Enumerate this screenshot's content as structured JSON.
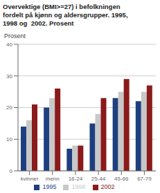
{
  "chart_data": {
    "type": "bar",
    "title": "Overvektige (BMI>=27) i befolkningen\nfordelt på kjønn og aldersgrupper. 1995,\n1998 og  2002. Prosent",
    "ylabel": "Prosent",
    "categories": [
      "kvinner",
      "menn",
      "16-24",
      "25-44",
      "45-66",
      "67-79"
    ],
    "series": [
      {
        "name": "1995",
        "color": "#1e3f7f",
        "values": [
          14,
          20,
          7,
          15,
          23,
          22
        ]
      },
      {
        "name": "1998",
        "color": "#c8c8c8",
        "values": [
          16,
          23,
          8,
          18,
          25,
          25
        ]
      },
      {
        "name": "2002",
        "color": "#8b1a1a",
        "values": [
          21,
          26,
          8,
          23,
          29,
          27
        ]
      }
    ],
    "ylim": [
      0,
      40
    ],
    "yticks": [
      0,
      10,
      20,
      30,
      40
    ],
    "grid": true,
    "legend": "bottom"
  }
}
